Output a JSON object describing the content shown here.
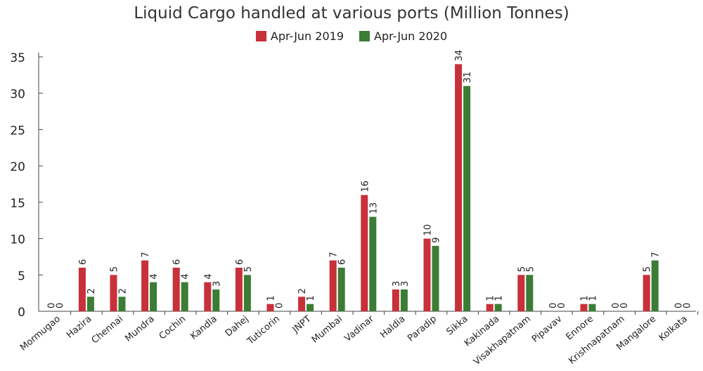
{
  "chart_data": {
    "type": "bar",
    "title": "Liquid Cargo handled at various ports (Million Tonnes)",
    "xlabel": "",
    "ylabel": "",
    "ylim": [
      0,
      35
    ],
    "yticks": [
      0,
      5,
      10,
      15,
      20,
      25,
      30,
      35
    ],
    "grid": false,
    "legend_position": "top-center",
    "categories": [
      "Mormugao",
      "Hazira",
      "Chennai",
      "Mundra",
      "Cochin",
      "Kandla",
      "Dahej",
      "Tuticorin",
      "JNPT",
      "Mumbai",
      "Vadinar",
      "Haldia",
      "Paradip",
      "Sikka",
      "Kakinada",
      "Visakhapatnam",
      "Pipavav",
      "Ennore",
      "Krishnapatnam",
      "Mangalore",
      "Kolkata"
    ],
    "series": [
      {
        "name": "Apr-Jun 2019",
        "color": "#c8303a",
        "values": [
          0,
          6,
          5,
          7,
          6,
          4,
          6,
          1,
          2,
          7,
          16,
          3,
          10,
          34,
          1,
          5,
          0,
          1,
          0,
          5,
          0
        ]
      },
      {
        "name": "Apr-Jun 2020",
        "color": "#3b7d34",
        "values": [
          0,
          2,
          2,
          4,
          4,
          3,
          5,
          0,
          1,
          6,
          13,
          3,
          9,
          31,
          1,
          5,
          0,
          1,
          0,
          7,
          0
        ]
      }
    ]
  }
}
